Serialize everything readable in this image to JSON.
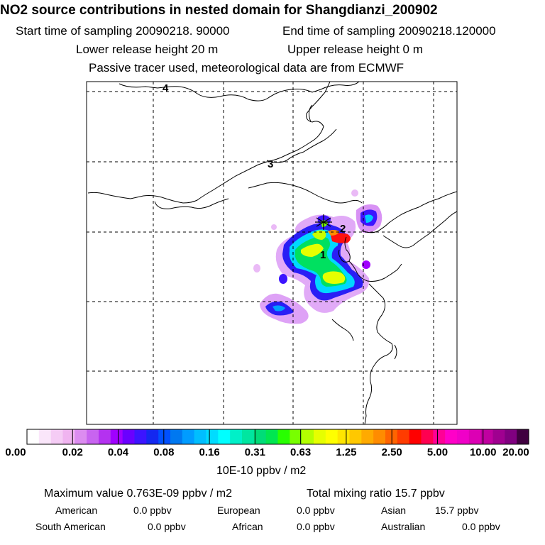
{
  "header": {
    "title": "NO2 source contributions in nested domain for Shangdianzi_200902",
    "start_time": "Start time of sampling 20090218. 90000",
    "end_time": "End time of sampling 20090218.120000",
    "lower_height": "Lower release height   20 m",
    "upper_height": "Upper release height    0 m",
    "tracer_note": "Passive tracer used, meteorological data are from ECMWF"
  },
  "chart_data": {
    "type": "heatmap",
    "title": "NO2 source contributions in nested domain for Shangdianzi_200902",
    "map_labels": [
      "4",
      "3",
      "2",
      "1"
    ],
    "colorbar": {
      "tick_labels": [
        "0.00",
        "0.02",
        "0.04",
        "0.08",
        "0.16",
        "0.31",
        "0.63",
        "1.25",
        "2.50",
        "5.00",
        "10.00",
        "20.00"
      ],
      "colors": [
        "#ffffff",
        "#fae6fa",
        "#f5ccf5",
        "#f0b4f0",
        "#dc8cf0",
        "#c864f0",
        "#b432f0",
        "#a000ff",
        "#6a00ff",
        "#3c14ff",
        "#1428f0",
        "#0050ff",
        "#0078f0",
        "#009cff",
        "#00beff",
        "#00dcff",
        "#00ffff",
        "#00f0c8",
        "#00e6a0",
        "#00dc78",
        "#00e650",
        "#28ff00",
        "#78ff00",
        "#b4ff00",
        "#e6ff00",
        "#ffff00",
        "#ffe600",
        "#ffc800",
        "#ffaa00",
        "#ff8c00",
        "#ff6400",
        "#ff3c00",
        "#ff0000",
        "#ff0050",
        "#ff0096",
        "#ff00c8",
        "#f000c8",
        "#dc00b4",
        "#c000a0",
        "#a00090",
        "#800080",
        "#400040"
      ],
      "unit": "10E-10 ppbv / m2"
    }
  },
  "summary": {
    "max_value": "Maximum value  0.763E-09 ppbv / m2",
    "total_mixing": "Total mixing ratio       15.7 ppbv"
  },
  "regions": [
    {
      "name": "American",
      "value": "0.0 ppbv"
    },
    {
      "name": "European",
      "value": "0.0 ppbv"
    },
    {
      "name": "Asian",
      "value": "15.7 ppbv"
    },
    {
      "name": "South American",
      "value": "0.0 ppbv"
    },
    {
      "name": "African",
      "value": "0.0 ppbv"
    },
    {
      "name": "Australian",
      "value": "0.0 ppbv"
    }
  ]
}
